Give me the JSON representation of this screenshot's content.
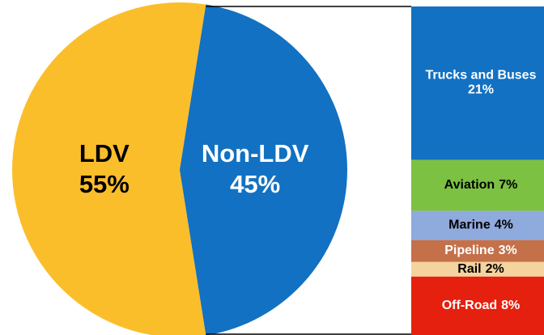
{
  "chart_data": [
    {
      "type": "pie",
      "categories": [
        "LDV",
        "Non-LDV"
      ],
      "values": [
        55,
        45
      ],
      "value_labels": [
        "55%",
        "45%"
      ],
      "colors": [
        "#FBBE2B",
        "#1271C2"
      ],
      "label_colors": [
        "#000000",
        "#ffffff"
      ]
    },
    {
      "type": "bar",
      "stacked": true,
      "categories": [
        "Trucks and Buses",
        "Aviation",
        "Marine",
        "Pipeline",
        "Rail",
        "Off-Road"
      ],
      "values": [
        21,
        7,
        4,
        3,
        2,
        8
      ],
      "value_labels": [
        "21%",
        "7%",
        "4%",
        "3%",
        "2%",
        "8%"
      ],
      "colors": [
        "#1271C2",
        "#7CC142",
        "#8FAADC",
        "#C4714A",
        "#F5D39E",
        "#E5200E"
      ],
      "label_colors": [
        "#ffffff",
        "#000000",
        "#000000",
        "#ffffff",
        "#000000",
        "#ffffff"
      ]
    }
  ]
}
